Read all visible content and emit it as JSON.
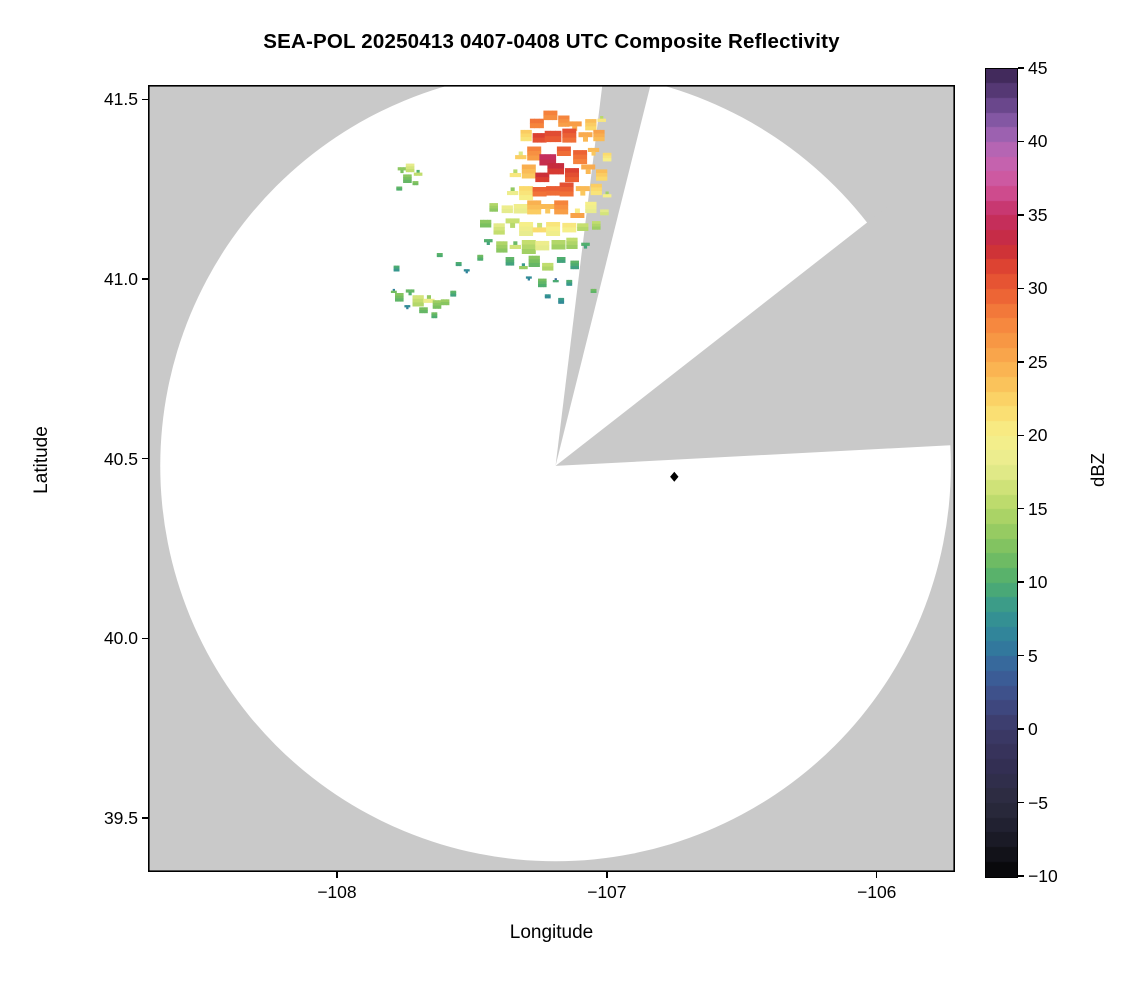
{
  "figure": {
    "background": "#ffffff"
  },
  "chart_data": {
    "type": "heatmap",
    "subtype": "radar-composite-reflectivity-ppi",
    "title": "SEA-POL 20250413 0407-0408 UTC Composite Reflectivity",
    "xlabel": "Longitude",
    "ylabel": "Latitude",
    "xlim": [
      -108.7,
      -105.71
    ],
    "ylim": [
      39.35,
      41.54
    ],
    "xticks": [
      -108,
      -107,
      -106
    ],
    "xtick_labels": [
      "−108",
      "−107",
      "−106"
    ],
    "yticks": [
      39.5,
      40.0,
      40.5,
      41.0,
      41.5
    ],
    "ytick_labels": [
      "39.5",
      "40.0",
      "40.5",
      "41.0",
      "41.5"
    ],
    "grid": false,
    "colors": {
      "outside_coverage": "#c9c9c9",
      "inside_coverage": "#ffffff",
      "frame": "#000000"
    },
    "radar": {
      "center_lon": -107.19,
      "center_lat": 40.48,
      "range_lat_deg": 1.1,
      "blocked_sectors_az_deg": [
        [
          7,
          14
        ],
        [
          52,
          87
        ]
      ]
    },
    "site_marker": {
      "lon": -106.75,
      "lat": 40.45,
      "symbol": "diamond",
      "color": "#000000"
    },
    "colorbar": {
      "label": "dBZ",
      "min": -10,
      "max": 45,
      "ticks": [
        45,
        40,
        35,
        30,
        25,
        20,
        15,
        10,
        5,
        0,
        -5,
        -10
      ],
      "tick_labels": [
        "45",
        "40",
        "35",
        "30",
        "25",
        "20",
        "15",
        "10",
        "5",
        "0",
        "−5",
        "−10"
      ],
      "colormap_stops": [
        [
          -10,
          "#050505"
        ],
        [
          -7,
          "#1e1e2c"
        ],
        [
          -5,
          "#2b2b3e"
        ],
        [
          -2,
          "#353057"
        ],
        [
          0,
          "#3c3a68"
        ],
        [
          2,
          "#3f4b85"
        ],
        [
          4,
          "#3a619b"
        ],
        [
          6,
          "#2f7f9d"
        ],
        [
          8,
          "#359690"
        ],
        [
          10,
          "#4fae6e"
        ],
        [
          12,
          "#78bf60"
        ],
        [
          14,
          "#a0cf63"
        ],
        [
          16,
          "#c6df70"
        ],
        [
          18,
          "#e8ec8f"
        ],
        [
          20,
          "#f7ef89"
        ],
        [
          22,
          "#fbd96b"
        ],
        [
          24,
          "#fabb56"
        ],
        [
          26,
          "#f89e47"
        ],
        [
          28,
          "#f5813c"
        ],
        [
          30,
          "#ea5c33"
        ],
        [
          32,
          "#d83b31"
        ],
        [
          33,
          "#c62b3d"
        ],
        [
          35,
          "#c52f63"
        ],
        [
          37,
          "#d1549b"
        ],
        [
          39,
          "#c167b4"
        ],
        [
          41,
          "#8f5fae"
        ],
        [
          43,
          "#5e3f80"
        ],
        [
          45,
          "#382350"
        ]
      ]
    },
    "echo_cell_format": "[lon, lat, size_deg, dbz]",
    "echo_cells": [
      [
        -107.26,
        41.44,
        0.05,
        26
      ],
      [
        -107.21,
        41.45,
        0.05,
        28
      ],
      [
        -107.16,
        41.44,
        0.04,
        25
      ],
      [
        -107.12,
        41.42,
        0.05,
        27
      ],
      [
        -107.06,
        41.43,
        0.04,
        22
      ],
      [
        -107.02,
        41.45,
        0.03,
        18
      ],
      [
        -107.3,
        41.4,
        0.04,
        22
      ],
      [
        -107.25,
        41.4,
        0.05,
        29
      ],
      [
        -107.2,
        41.39,
        0.06,
        31
      ],
      [
        -107.14,
        41.4,
        0.05,
        28
      ],
      [
        -107.08,
        41.39,
        0.05,
        26
      ],
      [
        -107.03,
        41.4,
        0.04,
        24
      ],
      [
        -107.32,
        41.35,
        0.04,
        20
      ],
      [
        -107.27,
        41.35,
        0.05,
        27
      ],
      [
        -107.22,
        41.34,
        0.06,
        32
      ],
      [
        -107.16,
        41.35,
        0.05,
        30
      ],
      [
        -107.1,
        41.34,
        0.05,
        27
      ],
      [
        -107.05,
        41.35,
        0.04,
        25
      ],
      [
        -107.0,
        41.34,
        0.03,
        20
      ],
      [
        -107.34,
        41.3,
        0.04,
        18
      ],
      [
        -107.29,
        41.3,
        0.05,
        24
      ],
      [
        -107.24,
        41.29,
        0.05,
        30
      ],
      [
        -107.19,
        41.3,
        0.06,
        33
      ],
      [
        -107.13,
        41.29,
        0.05,
        29
      ],
      [
        -107.07,
        41.3,
        0.05,
        26
      ],
      [
        -107.02,
        41.29,
        0.04,
        22
      ],
      [
        -107.35,
        41.25,
        0.04,
        16
      ],
      [
        -107.3,
        41.24,
        0.05,
        21
      ],
      [
        -107.25,
        41.25,
        0.05,
        27
      ],
      [
        -107.2,
        41.24,
        0.05,
        30
      ],
      [
        -107.15,
        41.25,
        0.05,
        28
      ],
      [
        -107.09,
        41.24,
        0.05,
        25
      ],
      [
        -107.04,
        41.25,
        0.04,
        21
      ],
      [
        -107.0,
        41.24,
        0.03,
        17
      ],
      [
        -107.42,
        41.2,
        0.03,
        14
      ],
      [
        -107.37,
        41.2,
        0.04,
        16
      ],
      [
        -107.32,
        41.19,
        0.05,
        19
      ],
      [
        -107.27,
        41.2,
        0.05,
        22
      ],
      [
        -107.22,
        41.19,
        0.05,
        25
      ],
      [
        -107.17,
        41.2,
        0.05,
        26
      ],
      [
        -107.11,
        41.19,
        0.05,
        23
      ],
      [
        -107.06,
        41.2,
        0.04,
        19
      ],
      [
        -107.01,
        41.19,
        0.03,
        15
      ],
      [
        -107.45,
        41.15,
        0.04,
        13
      ],
      [
        -107.4,
        41.14,
        0.04,
        15
      ],
      [
        -107.35,
        41.15,
        0.05,
        17
      ],
      [
        -107.3,
        41.14,
        0.05,
        18
      ],
      [
        -107.25,
        41.15,
        0.05,
        19
      ],
      [
        -107.2,
        41.14,
        0.05,
        20
      ],
      [
        -107.14,
        41.15,
        0.05,
        18
      ],
      [
        -107.09,
        41.14,
        0.04,
        16
      ],
      [
        -107.04,
        41.15,
        0.03,
        13
      ],
      [
        -107.44,
        41.1,
        0.03,
        11
      ],
      [
        -107.39,
        41.09,
        0.04,
        13
      ],
      [
        -107.34,
        41.1,
        0.04,
        14
      ],
      [
        -107.29,
        41.09,
        0.05,
        15
      ],
      [
        -107.24,
        41.1,
        0.05,
        16
      ],
      [
        -107.18,
        41.09,
        0.05,
        15
      ],
      [
        -107.13,
        41.1,
        0.04,
        13
      ],
      [
        -107.08,
        41.09,
        0.03,
        11
      ],
      [
        -107.36,
        41.05,
        0.03,
        9
      ],
      [
        -107.31,
        41.04,
        0.03,
        11
      ],
      [
        -107.27,
        41.05,
        0.04,
        12
      ],
      [
        -107.22,
        41.04,
        0.04,
        13
      ],
      [
        -107.17,
        41.05,
        0.03,
        10
      ],
      [
        -107.12,
        41.04,
        0.03,
        8
      ],
      [
        -107.29,
        41.0,
        0.02,
        8
      ],
      [
        -107.24,
        40.99,
        0.03,
        10
      ],
      [
        -107.19,
        41.0,
        0.02,
        7
      ],
      [
        -107.14,
        40.99,
        0.02,
        9
      ],
      [
        -107.05,
        40.97,
        0.02,
        9
      ],
      [
        -107.22,
        40.95,
        0.02,
        8
      ],
      [
        -107.17,
        40.94,
        0.02,
        6
      ],
      [
        -107.76,
        41.3,
        0.03,
        14
      ],
      [
        -107.73,
        41.31,
        0.03,
        16
      ],
      [
        -107.7,
        41.3,
        0.03,
        13
      ],
      [
        -107.74,
        41.28,
        0.03,
        12
      ],
      [
        -107.71,
        41.27,
        0.02,
        10
      ],
      [
        -107.77,
        41.25,
        0.02,
        11
      ],
      [
        -107.77,
        40.95,
        0.03,
        10
      ],
      [
        -107.73,
        40.96,
        0.03,
        12
      ],
      [
        -107.7,
        40.94,
        0.04,
        15
      ],
      [
        -107.66,
        40.95,
        0.04,
        16
      ],
      [
        -107.63,
        40.93,
        0.03,
        13
      ],
      [
        -107.6,
        40.94,
        0.03,
        11
      ],
      [
        -107.68,
        40.91,
        0.03,
        12
      ],
      [
        -107.64,
        40.9,
        0.02,
        9
      ],
      [
        -107.74,
        40.92,
        0.02,
        8
      ],
      [
        -107.57,
        40.96,
        0.02,
        9
      ],
      [
        -107.79,
        40.97,
        0.02,
        9
      ],
      [
        -107.78,
        41.03,
        0.02,
        9
      ],
      [
        -107.62,
        41.07,
        0.02,
        8
      ],
      [
        -107.55,
        41.04,
        0.02,
        10
      ],
      [
        -107.47,
        41.06,
        0.02,
        9
      ],
      [
        -107.52,
        41.02,
        0.02,
        8
      ]
    ]
  }
}
